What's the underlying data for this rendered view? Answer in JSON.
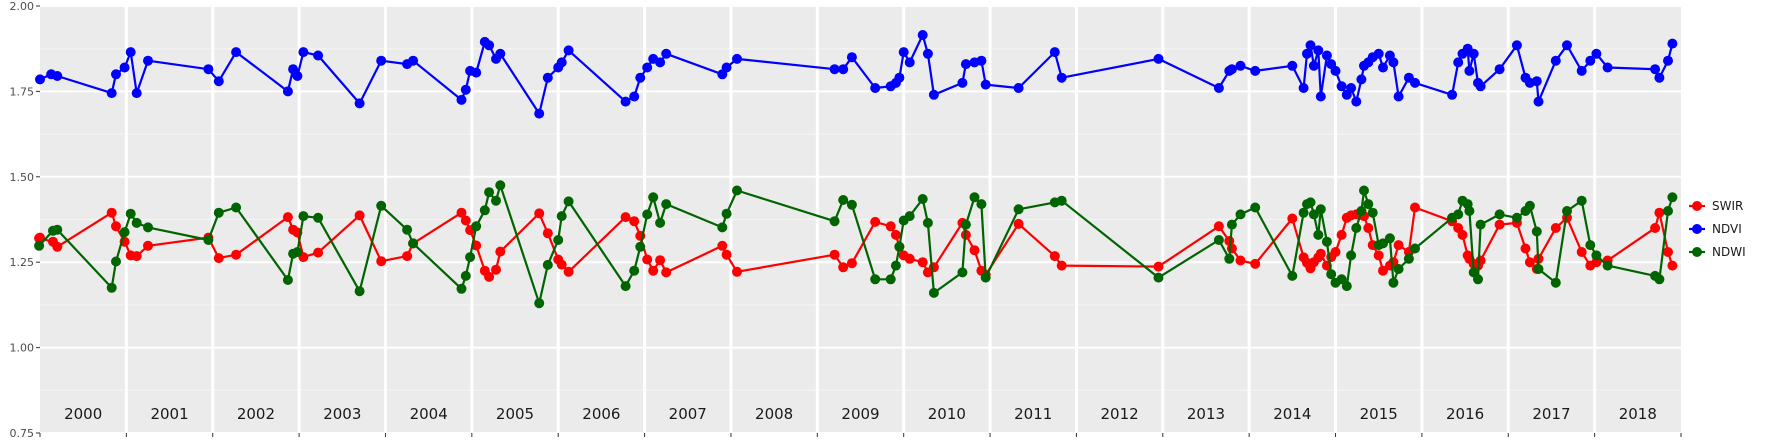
{
  "chart_data": {
    "type": "line",
    "title": "",
    "xlabel": "",
    "ylabel": "",
    "x_domain": [
      2000,
      2019
    ],
    "ylim": [
      0.75,
      2.0
    ],
    "y_ticks": [
      "0.75",
      "1.00",
      "1.25",
      "1.50",
      "1.75",
      "2.00"
    ],
    "year_labels": [
      "2000",
      "2001",
      "2002",
      "2003",
      "2004",
      "2005",
      "2006",
      "2007",
      "2008",
      "2009",
      "2010",
      "2011",
      "2012",
      "2013",
      "2014",
      "2015",
      "2016",
      "2017",
      "2018"
    ],
    "grid": true,
    "legend_position": "right",
    "series": [
      {
        "name": "SWIR",
        "color": "#ff0000",
        "x": [
          2000.0,
          1999.99,
          2000.15,
          2000.2,
          2000.83,
          2000.88,
          2000.98,
          2001.05,
          2001.12,
          2001.25,
          2001.95,
          2002.07,
          2002.27,
          2002.87,
          2002.93,
          2002.98,
          2003.05,
          2003.22,
          2003.7,
          2003.95,
          2004.25,
          2004.32,
          2004.88,
          2004.93,
          2004.98,
          2005.05,
          2005.15,
          2005.2,
          2005.28,
          2005.33,
          2005.78,
          2005.88,
          2006.0,
          2006.04,
          2006.12,
          2006.78,
          2006.88,
          2006.95,
          2007.03,
          2007.1,
          2007.18,
          2007.25,
          2007.9,
          2007.95,
          2008.07,
          2009.2,
          2009.3,
          2009.4,
          2009.67,
          2009.85,
          2009.91,
          2009.95,
          2010.0,
          2010.07,
          2010.22,
          2010.28,
          2010.35,
          2010.68,
          2010.72,
          2010.82,
          2010.9,
          2010.95,
          2011.33,
          2011.75,
          2011.83,
          2012.95,
          2013.65,
          2013.77,
          2013.8,
          2013.9,
          2014.07,
          2014.5,
          2014.63,
          2014.67,
          2014.71,
          2014.75,
          2014.8,
          2014.83,
          2014.9,
          2014.95,
          2015.0,
          2015.07,
          2015.13,
          2015.18,
          2015.24,
          2015.3,
          2015.33,
          2015.38,
          2015.43,
          2015.5,
          2015.55,
          2015.63,
          2015.67,
          2015.73,
          2015.85,
          2015.92,
          2016.35,
          2016.42,
          2016.47,
          2016.53,
          2016.55,
          2016.6,
          2016.65,
          2016.68,
          2016.9,
          2017.1,
          2017.2,
          2017.25,
          2017.33,
          2017.35,
          2017.55,
          2017.68,
          2017.85,
          2017.95,
          2018.02,
          2018.15,
          2018.7,
          2018.75,
          2018.85,
          2018.9
        ],
        "y": [
          1.322,
          1.32,
          1.31,
          1.295,
          1.395,
          1.355,
          1.31,
          1.27,
          1.268,
          1.298,
          1.322,
          1.262,
          1.272,
          1.382,
          1.345,
          1.337,
          1.265,
          1.278,
          1.387,
          1.253,
          1.268,
          1.305,
          1.395,
          1.372,
          1.344,
          1.299,
          1.225,
          1.207,
          1.228,
          1.281,
          1.393,
          1.335,
          1.258,
          1.243,
          1.222,
          1.382,
          1.37,
          1.327,
          1.258,
          1.225,
          1.256,
          1.22,
          1.298,
          1.272,
          1.222,
          1.272,
          1.235,
          1.247,
          1.368,
          1.355,
          1.33,
          1.295,
          1.27,
          1.26,
          1.25,
          1.22,
          1.235,
          1.365,
          1.33,
          1.285,
          1.225,
          1.213,
          1.362,
          1.268,
          1.24,
          1.237,
          1.355,
          1.312,
          1.29,
          1.255,
          1.245,
          1.378,
          1.264,
          1.248,
          1.232,
          1.25,
          1.264,
          1.275,
          1.24,
          1.265,
          1.28,
          1.33,
          1.38,
          1.387,
          1.39,
          1.389,
          1.385,
          1.35,
          1.3,
          1.27,
          1.225,
          1.24,
          1.25,
          1.3,
          1.28,
          1.41,
          1.37,
          1.35,
          1.33,
          1.27,
          1.26,
          1.245,
          1.24,
          1.255,
          1.36,
          1.365,
          1.29,
          1.25,
          1.23,
          1.26,
          1.35,
          1.38,
          1.28,
          1.24,
          1.25,
          1.255,
          1.35,
          1.395,
          1.28,
          1.24
        ]
      },
      {
        "name": "NDVI",
        "color": "#0000ff",
        "x": [
          2000.0,
          2000.13,
          2000.2,
          2000.83,
          2000.88,
          2000.98,
          2001.05,
          2001.12,
          2001.25,
          2001.95,
          2002.07,
          2002.27,
          2002.87,
          2002.93,
          2002.98,
          2003.05,
          2003.22,
          2003.7,
          2003.95,
          2004.25,
          2004.32,
          2004.88,
          2004.93,
          2004.98,
          2005.05,
          2005.15,
          2005.2,
          2005.28,
          2005.33,
          2005.78,
          2005.88,
          2006.0,
          2006.04,
          2006.12,
          2006.78,
          2006.88,
          2006.95,
          2007.03,
          2007.1,
          2007.18,
          2007.25,
          2007.9,
          2007.95,
          2008.07,
          2009.2,
          2009.3,
          2009.4,
          2009.67,
          2009.85,
          2009.91,
          2009.95,
          2010.0,
          2010.07,
          2010.22,
          2010.28,
          2010.35,
          2010.68,
          2010.72,
          2010.82,
          2010.9,
          2010.95,
          2011.33,
          2011.75,
          2011.83,
          2012.95,
          2013.65,
          2013.77,
          2013.8,
          2013.9,
          2014.07,
          2014.5,
          2014.63,
          2014.67,
          2014.71,
          2014.75,
          2014.8,
          2014.83,
          2014.9,
          2014.95,
          2015.0,
          2015.07,
          2015.13,
          2015.18,
          2015.24,
          2015.3,
          2015.33,
          2015.38,
          2015.43,
          2015.5,
          2015.55,
          2015.63,
          2015.67,
          2015.73,
          2015.85,
          2015.92,
          2016.35,
          2016.42,
          2016.47,
          2016.53,
          2016.55,
          2016.6,
          2016.65,
          2016.68,
          2016.9,
          2017.1,
          2017.2,
          2017.25,
          2017.33,
          2017.35,
          2017.55,
          2017.68,
          2017.85,
          2017.95,
          2018.02,
          2018.15,
          2018.7,
          2018.75,
          2018.85,
          2018.9
        ],
        "y": [
          1.785,
          1.8,
          1.795,
          1.745,
          1.8,
          1.82,
          1.865,
          1.745,
          1.84,
          1.815,
          1.78,
          1.865,
          1.75,
          1.815,
          1.795,
          1.865,
          1.855,
          1.715,
          1.84,
          1.83,
          1.84,
          1.725,
          1.755,
          1.81,
          1.805,
          1.895,
          1.885,
          1.845,
          1.86,
          1.685,
          1.79,
          1.82,
          1.835,
          1.87,
          1.72,
          1.735,
          1.79,
          1.82,
          1.845,
          1.835,
          1.86,
          1.8,
          1.82,
          1.845,
          1.815,
          1.815,
          1.85,
          1.76,
          1.765,
          1.775,
          1.79,
          1.865,
          1.835,
          1.915,
          1.86,
          1.74,
          1.775,
          1.83,
          1.835,
          1.84,
          1.77,
          1.76,
          1.865,
          1.79,
          1.845,
          1.76,
          1.81,
          1.815,
          1.825,
          1.81,
          1.825,
          1.76,
          1.86,
          1.885,
          1.825,
          1.87,
          1.735,
          1.855,
          1.83,
          1.81,
          1.765,
          1.74,
          1.76,
          1.72,
          1.785,
          1.825,
          1.835,
          1.85,
          1.86,
          1.82,
          1.855,
          1.835,
          1.735,
          1.79,
          1.775,
          1.74,
          1.835,
          1.86,
          1.875,
          1.81,
          1.86,
          1.775,
          1.765,
          1.815,
          1.885,
          1.79,
          1.775,
          1.78,
          1.72,
          1.84,
          1.885,
          1.81,
          1.84,
          1.86,
          1.82,
          1.815,
          1.79,
          1.84,
          1.89
        ]
      },
      {
        "name": "NDWI",
        "color": "#006400",
        "x": [
          1999.99,
          2000.15,
          2000.2,
          2000.83,
          2000.88,
          2000.98,
          2001.05,
          2001.12,
          2001.25,
          2001.95,
          2002.07,
          2002.27,
          2002.87,
          2002.93,
          2002.98,
          2003.05,
          2003.22,
          2003.7,
          2003.95,
          2004.25,
          2004.32,
          2004.88,
          2004.93,
          2004.98,
          2005.05,
          2005.15,
          2005.2,
          2005.28,
          2005.33,
          2005.78,
          2005.88,
          2006.0,
          2006.04,
          2006.12,
          2006.78,
          2006.88,
          2006.95,
          2007.03,
          2007.1,
          2007.18,
          2007.25,
          2007.9,
          2007.95,
          2008.07,
          2009.2,
          2009.3,
          2009.4,
          2009.67,
          2009.85,
          2009.91,
          2009.95,
          2010.0,
          2010.07,
          2010.22,
          2010.28,
          2010.35,
          2010.68,
          2010.72,
          2010.82,
          2010.9,
          2010.95,
          2011.33,
          2011.75,
          2011.83,
          2012.95,
          2013.65,
          2013.77,
          2013.8,
          2013.9,
          2014.07,
          2014.5,
          2014.63,
          2014.67,
          2014.71,
          2014.75,
          2014.8,
          2014.83,
          2014.9,
          2014.95,
          2015.0,
          2015.07,
          2015.13,
          2015.18,
          2015.24,
          2015.3,
          2015.33,
          2015.38,
          2015.43,
          2015.5,
          2015.55,
          2015.63,
          2015.67,
          2015.73,
          2015.85,
          2015.92,
          2016.35,
          2016.42,
          2016.47,
          2016.53,
          2016.55,
          2016.6,
          2016.65,
          2016.68,
          2016.9,
          2017.1,
          2017.2,
          2017.25,
          2017.33,
          2017.35,
          2017.55,
          2017.68,
          2017.85,
          2017.95,
          2018.02,
          2018.15,
          2018.7,
          2018.75,
          2018.85,
          2018.9
        ],
        "y": [
          1.298,
          1.342,
          1.345,
          1.175,
          1.252,
          1.338,
          1.392,
          1.365,
          1.352,
          1.315,
          1.395,
          1.41,
          1.198,
          1.275,
          1.28,
          1.385,
          1.38,
          1.165,
          1.415,
          1.345,
          1.305,
          1.172,
          1.21,
          1.265,
          1.355,
          1.402,
          1.455,
          1.43,
          1.475,
          1.13,
          1.242,
          1.315,
          1.385,
          1.428,
          1.18,
          1.225,
          1.295,
          1.39,
          1.44,
          1.365,
          1.42,
          1.352,
          1.392,
          1.46,
          1.37,
          1.432,
          1.418,
          1.2,
          1.2,
          1.24,
          1.295,
          1.372,
          1.385,
          1.435,
          1.365,
          1.16,
          1.22,
          1.36,
          1.44,
          1.42,
          1.205,
          1.405,
          1.425,
          1.43,
          1.205,
          1.315,
          1.26,
          1.36,
          1.39,
          1.41,
          1.21,
          1.395,
          1.42,
          1.425,
          1.39,
          1.33,
          1.405,
          1.31,
          1.215,
          1.19,
          1.2,
          1.18,
          1.27,
          1.35,
          1.4,
          1.46,
          1.42,
          1.395,
          1.3,
          1.305,
          1.32,
          1.19,
          1.23,
          1.26,
          1.29,
          1.38,
          1.39,
          1.43,
          1.42,
          1.4,
          1.22,
          1.2,
          1.36,
          1.39,
          1.38,
          1.4,
          1.415,
          1.34,
          1.23,
          1.19,
          1.4,
          1.43,
          1.3,
          1.27,
          1.24,
          1.21,
          1.2,
          1.4,
          1.44
        ]
      }
    ]
  }
}
